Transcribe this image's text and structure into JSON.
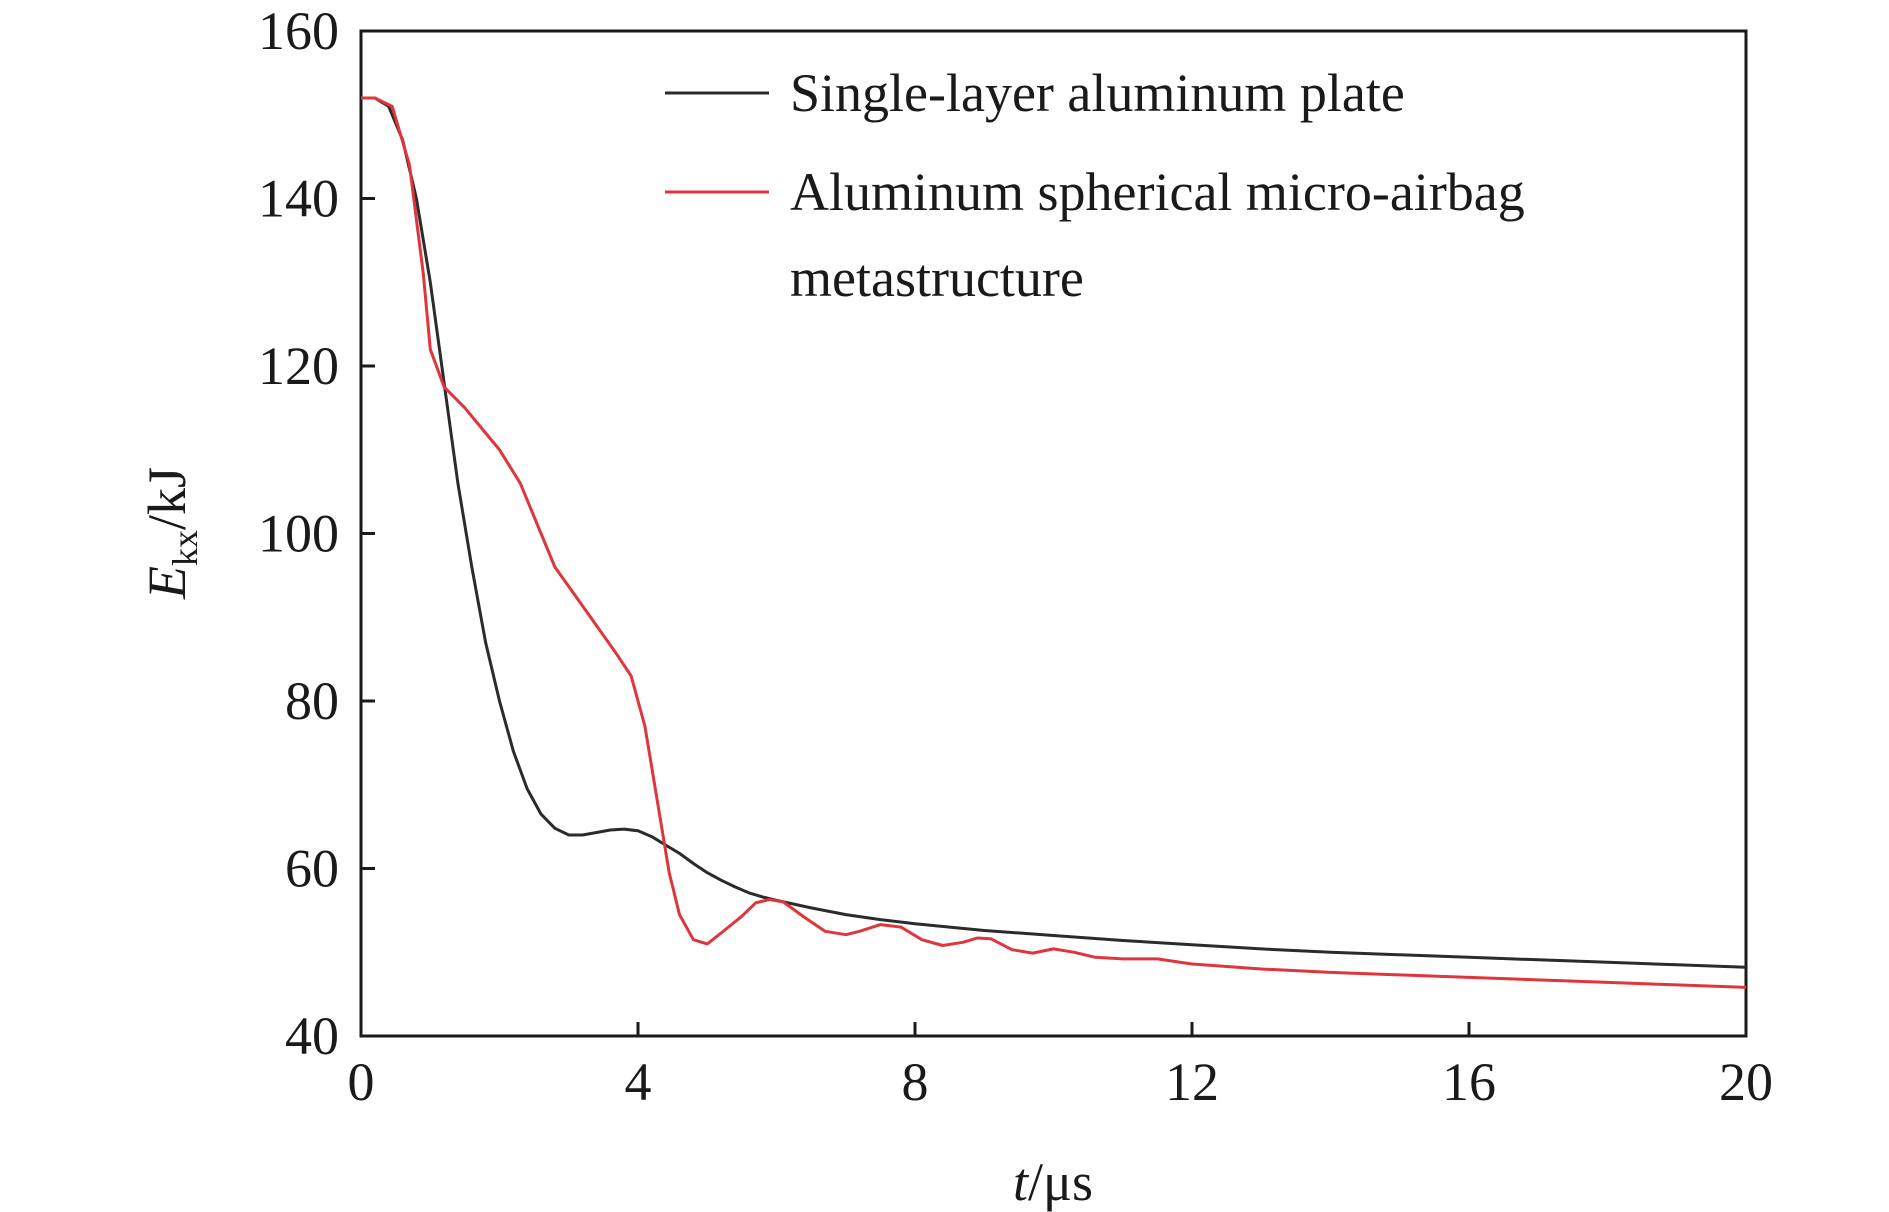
{
  "chart_data": {
    "type": "line",
    "xlabel": {
      "italic": "t",
      "rest": "/μs"
    },
    "ylabel": {
      "italic": "E",
      "sub": "kx",
      "rest": "/kJ"
    },
    "xlim": [
      0,
      20
    ],
    "ylim": [
      40,
      160
    ],
    "xticks": [
      0,
      4,
      8,
      12,
      16,
      20
    ],
    "yticks": [
      40,
      60,
      80,
      100,
      120,
      140,
      160
    ],
    "grid": false,
    "legend_position": "top-right",
    "series": [
      {
        "name": "Single-layer aluminum plate",
        "color": "#2b2b2b",
        "x": [
          0,
          0.2,
          0.4,
          0.6,
          0.8,
          1.0,
          1.2,
          1.4,
          1.6,
          1.8,
          2.0,
          2.2,
          2.4,
          2.6,
          2.8,
          3.0,
          3.2,
          3.4,
          3.6,
          3.8,
          4.0,
          4.2,
          4.4,
          4.6,
          4.8,
          5.0,
          5.2,
          5.4,
          5.6,
          5.8,
          6.0,
          6.5,
          7.0,
          7.5,
          8.0,
          9.0,
          10.0,
          11.0,
          12.0,
          13.0,
          14.0,
          15.0,
          16.0,
          17.0,
          18.0,
          19.0,
          20.0
        ],
        "y": [
          152,
          152,
          151,
          147,
          140,
          130,
          118,
          106,
          96,
          87,
          80,
          74,
          69.5,
          66.5,
          64.8,
          64.0,
          64.0,
          64.3,
          64.6,
          64.7,
          64.5,
          63.8,
          62.8,
          61.8,
          60.6,
          59.5,
          58.6,
          57.8,
          57.1,
          56.6,
          56.2,
          55.3,
          54.5,
          53.9,
          53.4,
          52.6,
          52.0,
          51.4,
          50.9,
          50.4,
          50.0,
          49.7,
          49.4,
          49.1,
          48.8,
          48.5,
          48.2
        ]
      },
      {
        "name": "Aluminum spherical micro-airbag metastructure",
        "name_lines": [
          "Aluminum spherical micro-airbag",
          "metastructure"
        ],
        "color": "#e0353d",
        "x": [
          0,
          0.2,
          0.45,
          0.7,
          0.9,
          1.0,
          1.2,
          1.5,
          1.8,
          2.0,
          2.3,
          2.6,
          2.8,
          3.1,
          3.4,
          3.7,
          3.9,
          4.1,
          4.3,
          4.45,
          4.6,
          4.8,
          5.0,
          5.2,
          5.5,
          5.7,
          5.9,
          6.1,
          6.4,
          6.7,
          7.0,
          7.2,
          7.5,
          7.8,
          8.1,
          8.4,
          8.7,
          8.9,
          9.1,
          9.4,
          9.7,
          10.0,
          10.3,
          10.6,
          11.0,
          11.5,
          12.0,
          13.0,
          14.0,
          15.0,
          16.0,
          17.0,
          18.0,
          19.0,
          20.0
        ],
        "y": [
          152,
          152,
          151,
          144,
          131,
          122,
          117.5,
          115,
          112,
          110,
          106,
          100,
          96,
          92.5,
          89,
          85.5,
          83,
          77,
          67,
          59.5,
          54.5,
          51.5,
          51.0,
          52.3,
          54.3,
          55.9,
          56.3,
          56.0,
          54.2,
          52.5,
          52.1,
          52.5,
          53.3,
          53.0,
          51.5,
          50.8,
          51.2,
          51.7,
          51.6,
          50.3,
          49.9,
          50.4,
          50.0,
          49.4,
          49.2,
          49.2,
          48.6,
          48.0,
          47.6,
          47.3,
          47.0,
          46.7,
          46.4,
          46.1,
          45.8
        ]
      }
    ]
  }
}
